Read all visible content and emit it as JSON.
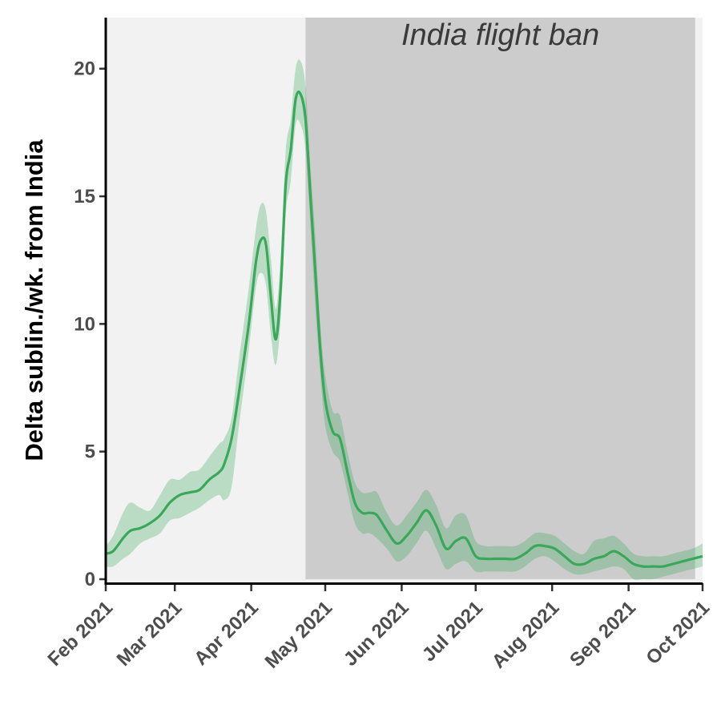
{
  "chart_data": {
    "type": "line",
    "title": "",
    "xlabel": "",
    "ylabel": "Delta sublin./wk. from India",
    "ylim": [
      0,
      22
    ],
    "xlim": [
      "2021-02-01",
      "2021-10-01"
    ],
    "yticks": [
      0,
      5,
      10,
      15,
      20
    ],
    "xticks": [
      {
        "date": "2021-02-01",
        "label": "Feb 2021"
      },
      {
        "date": "2021-03-01",
        "label": "Mar 2021"
      },
      {
        "date": "2021-04-01",
        "label": "Apr 2021"
      },
      {
        "date": "2021-05-01",
        "label": "May 2021"
      },
      {
        "date": "2021-06-01",
        "label": "Jun 2021"
      },
      {
        "date": "2021-07-01",
        "label": "Jul 2021"
      },
      {
        "date": "2021-08-01",
        "label": "Aug 2021"
      },
      {
        "date": "2021-09-01",
        "label": "Sep 2021"
      },
      {
        "date": "2021-10-01",
        "label": "Oct 2021"
      }
    ],
    "grid": false,
    "annotation": {
      "text": "India flight ban",
      "start": "2021-04-23",
      "end": "2021-09-28"
    },
    "colors": {
      "line": "#3aa85a",
      "band": "#3aa85a",
      "shade": "#cccccc",
      "panel": "#f2f2f2"
    },
    "series": [
      {
        "x": [
          "2021-02-01",
          "2021-02-04",
          "2021-02-08",
          "2021-02-11",
          "2021-02-15",
          "2021-02-19",
          "2021-02-23",
          "2021-02-27",
          "2021-03-03",
          "2021-03-07",
          "2021-03-11",
          "2021-03-15",
          "2021-03-19",
          "2021-03-21",
          "2021-03-24",
          "2021-03-27",
          "2021-03-31",
          "2021-04-03",
          "2021-04-05",
          "2021-04-07",
          "2021-04-09",
          "2021-04-11",
          "2021-04-13",
          "2021-04-15",
          "2021-04-17",
          "2021-04-19",
          "2021-04-21",
          "2021-04-23",
          "2021-04-25",
          "2021-04-27",
          "2021-04-29",
          "2021-05-01",
          "2021-05-04",
          "2021-05-07",
          "2021-05-10",
          "2021-05-13",
          "2021-05-16",
          "2021-05-19",
          "2021-05-22",
          "2021-05-26",
          "2021-05-30",
          "2021-06-03",
          "2021-06-07",
          "2021-06-11",
          "2021-06-15",
          "2021-06-19",
          "2021-06-23",
          "2021-06-27",
          "2021-07-01",
          "2021-07-05",
          "2021-07-09",
          "2021-07-13",
          "2021-07-17",
          "2021-07-21",
          "2021-07-25",
          "2021-07-29",
          "2021-08-02",
          "2021-08-06",
          "2021-08-10",
          "2021-08-14",
          "2021-08-18",
          "2021-08-22",
          "2021-08-26",
          "2021-08-30",
          "2021-09-03",
          "2021-09-07",
          "2021-09-11",
          "2021-09-15",
          "2021-09-19",
          "2021-09-23",
          "2021-09-27",
          "2021-10-01"
        ],
        "y": [
          1.0,
          1.1,
          1.6,
          1.9,
          2.0,
          2.2,
          2.5,
          3.0,
          3.3,
          3.4,
          3.5,
          3.9,
          4.2,
          4.5,
          5.5,
          7.3,
          10.0,
          12.5,
          13.3,
          13.1,
          11.0,
          9.4,
          11.5,
          15.5,
          16.8,
          18.8,
          19.0,
          18.0,
          15.0,
          12.0,
          9.0,
          7.0,
          5.8,
          5.5,
          4.2,
          3.0,
          2.6,
          2.6,
          2.5,
          1.9,
          1.4,
          1.7,
          2.2,
          2.7,
          2.1,
          1.2,
          1.5,
          1.6,
          0.9,
          0.8,
          0.8,
          0.8,
          0.8,
          1.0,
          1.3,
          1.3,
          1.2,
          0.9,
          0.6,
          0.6,
          0.8,
          0.9,
          1.1,
          0.9,
          0.6,
          0.5,
          0.5,
          0.5,
          0.6,
          0.7,
          0.8,
          0.9
        ],
        "lower": [
          0.5,
          0.5,
          0.8,
          1.0,
          1.4,
          1.6,
          1.8,
          2.3,
          2.4,
          2.6,
          2.8,
          3.1,
          3.3,
          3.1,
          3.6,
          6.0,
          9.0,
          11.5,
          12.0,
          11.5,
          9.5,
          8.4,
          10.3,
          14.3,
          15.6,
          17.8,
          17.8,
          16.8,
          13.8,
          10.6,
          8.0,
          6.0,
          5.0,
          4.6,
          3.4,
          2.2,
          1.8,
          1.8,
          1.6,
          1.2,
          0.7,
          0.9,
          1.4,
          1.9,
          1.2,
          0.4,
          0.6,
          0.7,
          0.3,
          0.3,
          0.3,
          0.3,
          0.3,
          0.5,
          0.8,
          0.9,
          0.7,
          0.4,
          0.2,
          0.2,
          0.3,
          0.4,
          0.5,
          0.4,
          0.0,
          0.0,
          0.0,
          0.1,
          0.2,
          0.3,
          0.4,
          0.5
        ],
        "upper": [
          1.3,
          1.7,
          2.6,
          3.0,
          2.8,
          2.7,
          3.3,
          3.9,
          3.9,
          4.2,
          4.3,
          4.8,
          5.3,
          5.5,
          6.3,
          8.6,
          11.4,
          13.8,
          14.7,
          14.4,
          12.5,
          10.6,
          12.8,
          16.8,
          18.0,
          20.0,
          20.3,
          19.3,
          16.2,
          13.4,
          10.0,
          8.0,
          6.6,
          6.4,
          5.0,
          3.8,
          3.4,
          3.4,
          3.4,
          2.6,
          2.1,
          2.5,
          3.0,
          3.5,
          2.9,
          2.0,
          2.5,
          2.5,
          1.5,
          1.3,
          1.3,
          1.3,
          1.3,
          1.5,
          1.8,
          1.8,
          1.7,
          1.4,
          1.1,
          1.0,
          1.5,
          1.6,
          1.7,
          1.4,
          1.0,
          0.9,
          0.9,
          0.9,
          1.0,
          1.1,
          1.2,
          1.4
        ]
      }
    ]
  }
}
